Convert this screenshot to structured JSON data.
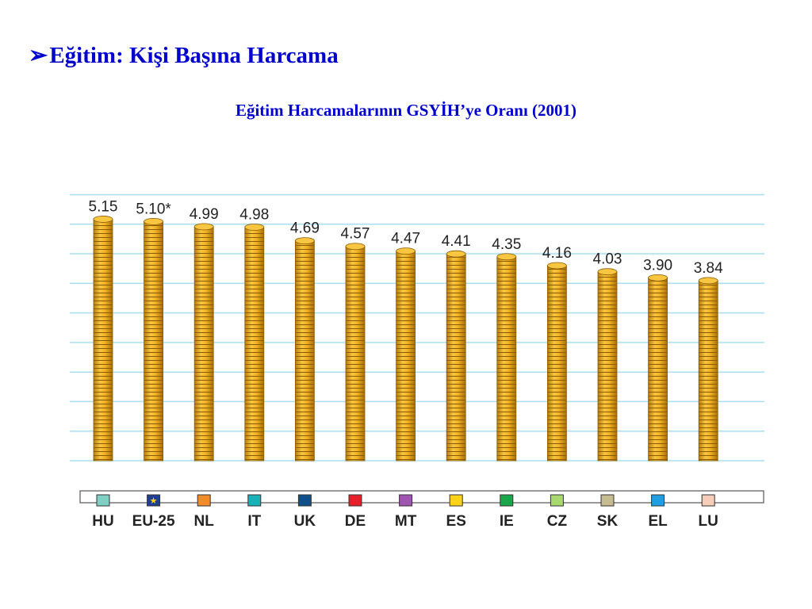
{
  "slide": {
    "bullet_icon": "arrow-bullet-icon",
    "title": "Eğitim: Kişi Başına Harcama"
  },
  "chart_data": {
    "type": "bar",
    "title": "Eğitim Harcamalarının GSYİH’ye Oranı (2001)",
    "categories": [
      "HU",
      "EU-25",
      "NL",
      "IT",
      "UK",
      "DE",
      "MT",
      "ES",
      "IE",
      "CZ",
      "SK",
      "EL",
      "LU"
    ],
    "values": [
      5.15,
      5.1,
      4.99,
      4.98,
      4.69,
      4.57,
      4.47,
      4.41,
      4.35,
      4.16,
      4.03,
      3.9,
      3.84
    ],
    "value_labels": [
      "5.15",
      "5.10*",
      "4.99",
      "4.98",
      "4.69",
      "4.57",
      "4.47",
      "4.41",
      "4.35",
      "4.16",
      "4.03",
      "3.90",
      "3.84"
    ],
    "legend_colors": [
      "#7fcfc4",
      "#1f3f8f",
      "#f28c28",
      "#17b3b8",
      "#10508a",
      "#e8202a",
      "#a055b0",
      "#ffd21a",
      "#1aa64a",
      "#a8d870",
      "#c7bb92",
      "#1f9fe0",
      "#f6cdb8"
    ],
    "legend_icons": [
      "",
      "eu-star-icon",
      "",
      "",
      "",
      "",
      "",
      "",
      "",
      "",
      "",
      "",
      ""
    ],
    "bar_style": "stacked gold coins",
    "coin_color": "#f2b324",
    "gridline_color": "#a8dff0",
    "ylim": [
      0,
      5.8
    ],
    "grid": true,
    "legend": "bottom"
  }
}
